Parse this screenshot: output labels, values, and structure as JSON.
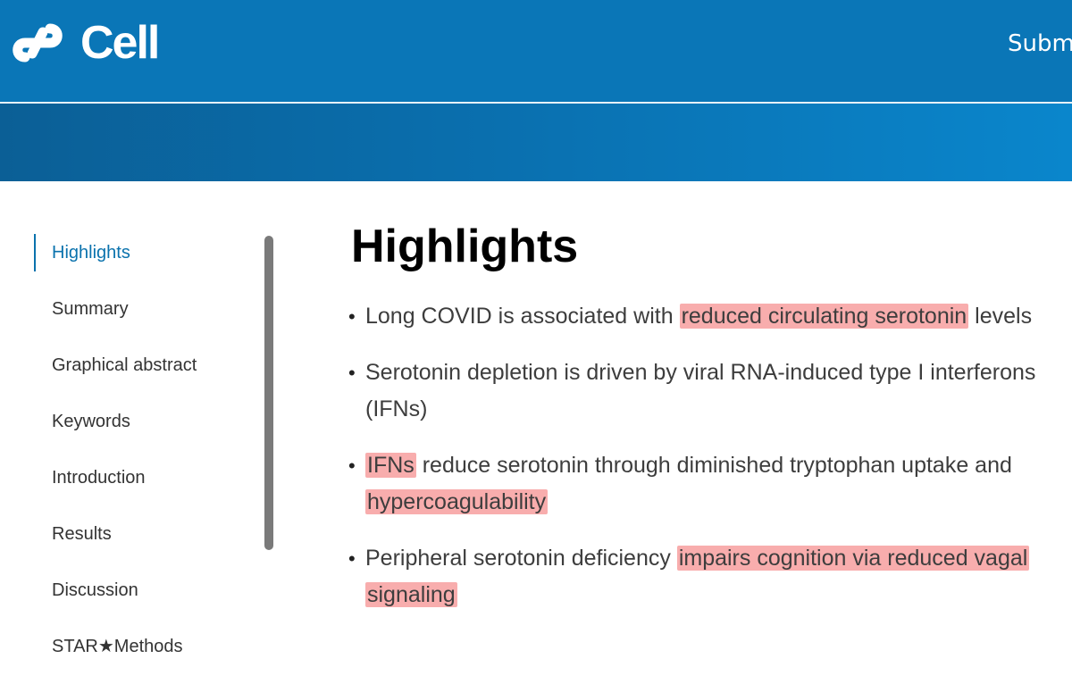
{
  "header": {
    "brand": "Cell",
    "nav_submit": "Subm",
    "colors": {
      "top_bar": "#0a76b7",
      "banner_start": "#0b5f96",
      "banner_end": "#0a86cc",
      "highlight": "#f47a7a",
      "active_link": "#0a72ad"
    }
  },
  "toc": {
    "items": [
      {
        "label": "Highlights"
      },
      {
        "label": "Summary"
      },
      {
        "label": "Graphical abstract"
      },
      {
        "label": "Keywords"
      },
      {
        "label": "Introduction"
      },
      {
        "label": "Results"
      },
      {
        "label": "Discussion"
      },
      {
        "label": "STAR★Methods"
      }
    ],
    "active_index": 0
  },
  "main": {
    "heading": "Highlights",
    "highlights": [
      {
        "t1": "Long COVID is associated with ",
        "h1": "reduced circulating serotonin",
        "t2": " levels"
      },
      {
        "t1": "Serotonin depletion is driven by viral RNA-induced type I interferons (IFNs)"
      },
      {
        "h1": "IFNs",
        "t1": " reduce serotonin through diminished tryptophan uptake and ",
        "h2": "hypercoagulability"
      },
      {
        "t1": "Peripheral serotonin deficiency ",
        "h1": "impairs cognition via reduced vagal signaling"
      }
    ]
  }
}
